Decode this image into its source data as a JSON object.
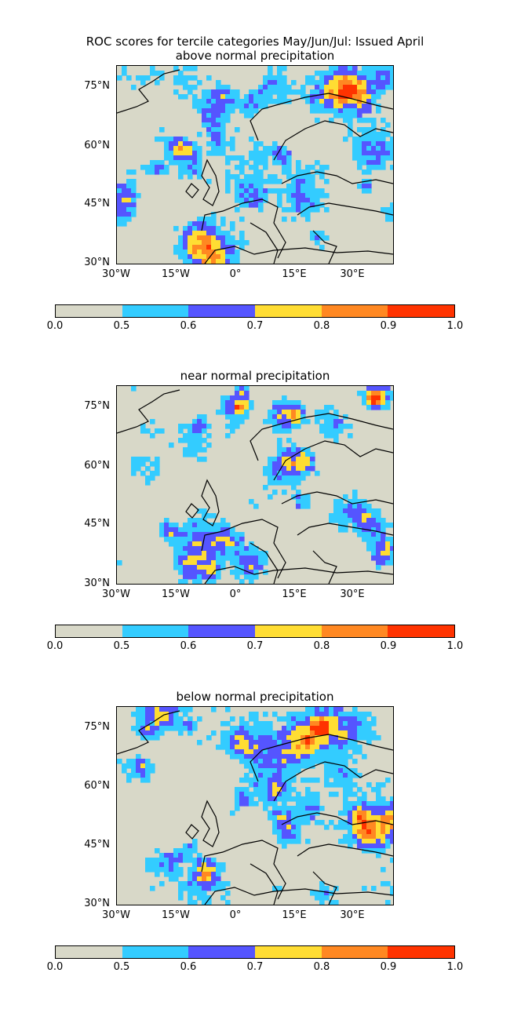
{
  "title": {
    "line1": "ROC scores for tercile categories May/Jun/Jul: Issued April",
    "line2": "above normal precipitation"
  },
  "panels": [
    {
      "title": "near normal precipitation"
    },
    {
      "title": "below normal precipitation"
    }
  ],
  "lat_labels": [
    "75°N",
    "60°N",
    "45°N",
    "30°N"
  ],
  "lon_labels": [
    "30°W",
    "15°W",
    "0°",
    "15°E",
    "30°E"
  ],
  "colorbar": {
    "ticks": [
      "0.0",
      "0.5",
      "0.6",
      "0.7",
      "0.8",
      "0.9",
      "1.0"
    ],
    "colors": [
      "#d8d8c8",
      "#33ccff",
      "#5555ff",
      "#ffdd33",
      "#ff8822",
      "#ff3300"
    ]
  },
  "extent": {
    "lon_min": -30,
    "lon_max": 40,
    "lat_min": 30,
    "lat_max": 80
  }
}
